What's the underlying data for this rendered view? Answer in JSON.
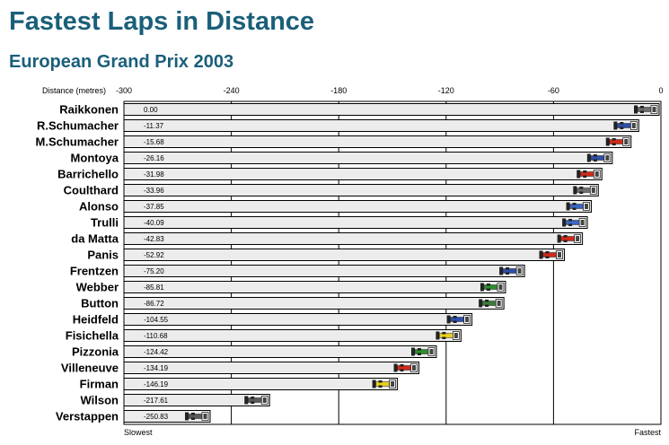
{
  "title": "Fastest Laps in Distance",
  "subtitle": "European Grand Prix 2003",
  "chart_data": {
    "type": "bar",
    "orientation": "horizontal",
    "title": "Fastest Laps in Distance",
    "subtitle": "European Grand Prix 2003",
    "xlabel": "Distance (metres)",
    "xlim": [
      -300,
      0
    ],
    "xticks": [
      -300,
      -240,
      -180,
      -120,
      -60,
      0
    ],
    "left_label": "Slowest",
    "right_label": "Fastest",
    "grid": "vertical",
    "categories": [
      "Raikkonen",
      "R.Schumacher",
      "M.Schumacher",
      "Montoya",
      "Barrichello",
      "Coulthard",
      "Alonso",
      "Trulli",
      "da Matta",
      "Panis",
      "Frentzen",
      "Webber",
      "Button",
      "Heidfeld",
      "Fisichella",
      "Pizzonia",
      "Villeneuve",
      "Firman",
      "Wilson",
      "Verstappen"
    ],
    "values": [
      0.0,
      -11.37,
      -15.68,
      -26.16,
      -31.98,
      -33.96,
      -37.85,
      -40.09,
      -42.83,
      -52.92,
      -75.2,
      -85.81,
      -86.72,
      -104.55,
      -110.68,
      -124.42,
      -134.19,
      -146.19,
      -217.61,
      -250.83
    ],
    "value_labels": [
      "0.00",
      "-11.37",
      "-15.68",
      "-26.16",
      "-31.98",
      "-33.96",
      "-37.85",
      "-40.09",
      "-42.83",
      "-52.92",
      "-75.20",
      "-85.81",
      "-86.72",
      "-104.55",
      "-110.68",
      "-124.42",
      "-134.19",
      "-146.19",
      "-217.61",
      "-250.83"
    ],
    "car_colors": [
      "#6e6e6e",
      "#2e4fa8",
      "#d12a1a",
      "#2e4fa8",
      "#d12a1a",
      "#6e6e6e",
      "#3a66c4",
      "#3a66c4",
      "#d12a1a",
      "#d12a1a",
      "#2e4fa8",
      "#2e8c2e",
      "#3a7d3a",
      "#2e4fa8",
      "#e8d020",
      "#2e8c2e",
      "#d12a1a",
      "#e8d020",
      "#5a5a5a",
      "#5a5a5a"
    ]
  }
}
